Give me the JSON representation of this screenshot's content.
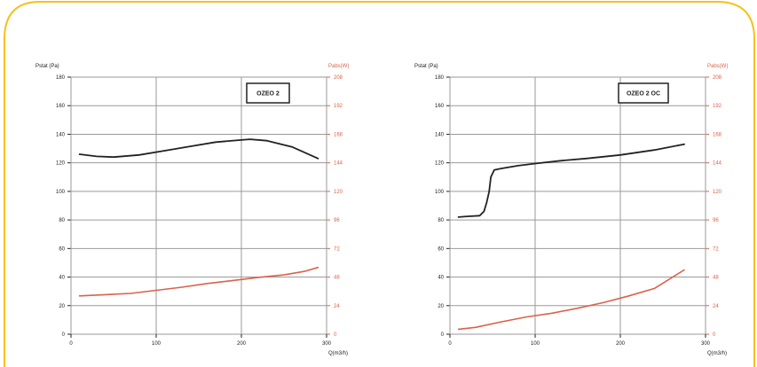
{
  "colors": {
    "frame": "#f5c21b",
    "grid": "#9a9a9a",
    "pressure_line": "#222222",
    "power_line": "#d9624a",
    "power_axis_text": "#d9624a",
    "text": "#222222"
  },
  "chart_data": [
    {
      "type": "line",
      "label_box": "OZEO 2",
      "ylabel_left": "Pstat (Pa)",
      "ylabel_right": "Pabs(W)",
      "xlabel": "Q(m3/h)",
      "xlim": [
        0,
        300
      ],
      "ylim_left": [
        0,
        180
      ],
      "ylim_right": [
        0,
        208
      ],
      "x_ticks": [
        "0",
        "100",
        "200",
        "300"
      ],
      "y_ticks_left": [
        "0",
        "20",
        "40",
        "60",
        "80",
        "100",
        "120",
        "140",
        "160",
        "180"
      ],
      "y_ticks_right": [
        "0",
        "24",
        "48",
        "72",
        "96",
        "120",
        "144",
        "168",
        "192",
        "208"
      ],
      "series": [
        {
          "axis": "left",
          "x": [
            10,
            30,
            50,
            80,
            110,
            140,
            170,
            200,
            210,
            230,
            260,
            290
          ],
          "y": [
            126,
            124.5,
            124,
            125.5,
            128.5,
            131.5,
            134.5,
            136,
            136.5,
            135.5,
            131,
            123
          ]
        },
        {
          "axis": "right",
          "x": [
            10,
            40,
            70,
            100,
            130,
            160,
            190,
            220,
            250,
            275,
            290
          ],
          "y": [
            31,
            32,
            33,
            35.5,
            38,
            41,
            43.5,
            46,
            48,
            51,
            54
          ]
        }
      ]
    },
    {
      "type": "line",
      "label_box": "OZEO 2 OC",
      "ylabel_left": "Pstat (Pa)",
      "ylabel_right": "Pabs(W)",
      "xlabel": "Q(m3/h)",
      "xlim": [
        0,
        300
      ],
      "ylim_left": [
        0,
        180
      ],
      "ylim_right": [
        0,
        208
      ],
      "x_ticks": [
        "0",
        "100",
        "200",
        "300"
      ],
      "y_ticks_left": [
        "0",
        "20",
        "40",
        "60",
        "80",
        "100",
        "120",
        "140",
        "160",
        "180"
      ],
      "y_ticks_right": [
        "0",
        "24",
        "48",
        "72",
        "96",
        "120",
        "144",
        "168",
        "192",
        "208"
      ],
      "series": [
        {
          "axis": "left",
          "x": [
            10,
            20,
            35,
            40,
            43,
            46,
            48,
            52,
            60,
            80,
            100,
            130,
            160,
            200,
            240,
            275
          ],
          "y": [
            82,
            82.5,
            83,
            86,
            92,
            100,
            110,
            115,
            116,
            118,
            119.5,
            121.5,
            123,
            125.5,
            129,
            133
          ]
        },
        {
          "axis": "right",
          "x": [
            10,
            30,
            60,
            90,
            120,
            150,
            180,
            210,
            240,
            275
          ],
          "y": [
            4,
            5.5,
            10,
            14,
            17,
            21,
            25.5,
            31,
            37,
            52
          ]
        }
      ]
    }
  ]
}
